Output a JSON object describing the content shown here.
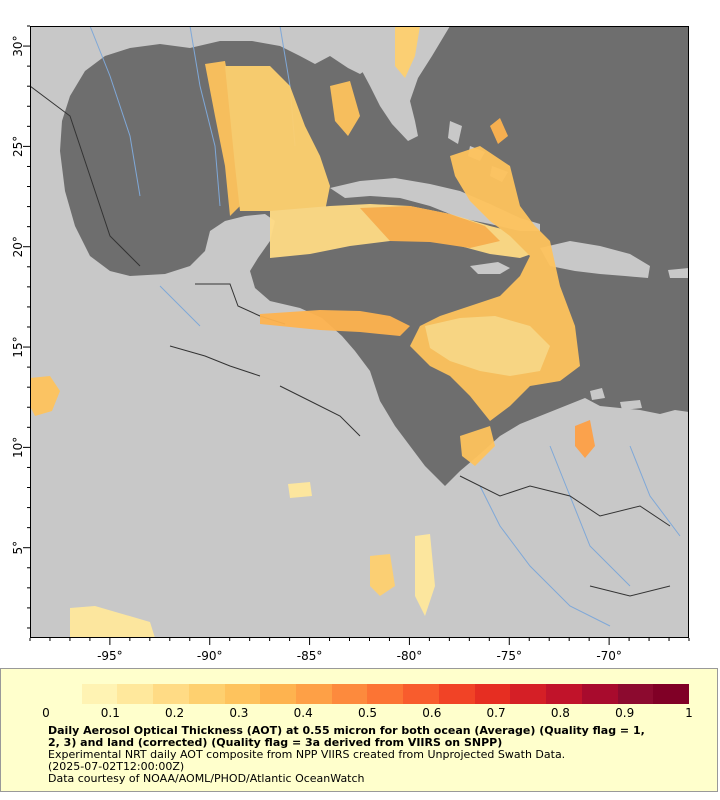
{
  "map": {
    "lon_range": [
      -99,
      -66
    ],
    "lat_range": [
      0.5,
      31
    ],
    "lon_ticks": [
      -95,
      -90,
      -85,
      -80,
      -75,
      -70
    ],
    "lon_tick_labels": [
      "-95°",
      "-90°",
      "-85°",
      "-80°",
      "-75°",
      "-70°"
    ],
    "lat_ticks": [
      5,
      10,
      15,
      20,
      25,
      30
    ],
    "lat_tick_labels": [
      "5°",
      "10°",
      "15°",
      "20°",
      "25°",
      "30°"
    ],
    "colors": {
      "ocean": "#6e6e6e",
      "land": "#c8c8c8",
      "rivers": "#7fa8d8",
      "borders": "#333333"
    }
  },
  "legend": {
    "colorbar_colors": [
      "#ffffcc",
      "#fff3b3",
      "#ffe89c",
      "#ffdb85",
      "#fed06f",
      "#fec35d",
      "#feb34f",
      "#fea046",
      "#fd8a3d",
      "#fc7434",
      "#f85c2d",
      "#f14326",
      "#e62e22",
      "#d51f26",
      "#c1132a",
      "#a80b2d",
      "#8c0a2f",
      "#800026"
    ],
    "tick_labels": [
      "0",
      "0.1",
      "0.2",
      "0.3",
      "0.4",
      "0.5",
      "0.6",
      "0.7",
      "0.8",
      "0.9",
      "1"
    ],
    "title_line1": "Daily Aerosol Optical Thickness (AOT) at 0.55 micron for both ocean (Average) (Quality flag = 1,",
    "title_line2": "2, 3) and land (corrected) (Quality flag = 3a derived from VIIRS on SNPP)",
    "line3": "Experimental NRT daily AOT composite from NPP VIIRS created from Unprojected Swath Data.",
    "line4": "(2025-07-02T12:00:00Z)",
    "line5": "Data courtesy of NOAA/AOML/PHOD/Atlantic OceanWatch"
  }
}
